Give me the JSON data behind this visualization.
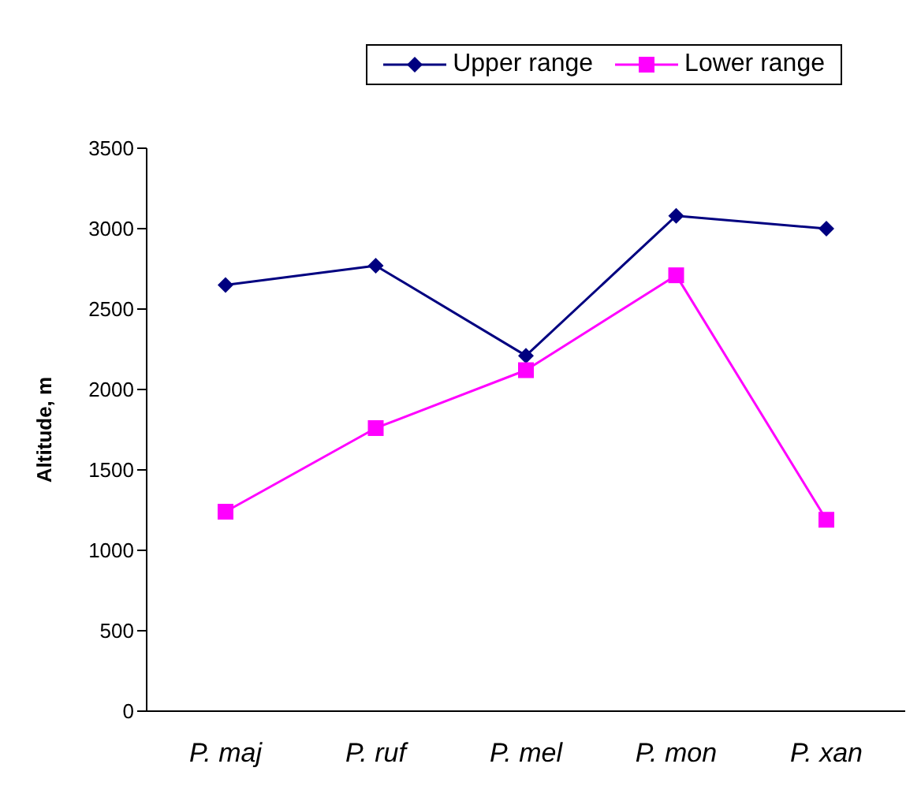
{
  "chart_data": {
    "type": "line",
    "ylabel": "Altitude, m",
    "categories": [
      "P. maj",
      "P. ruf",
      "P. mel",
      "P. mon",
      "P. xan"
    ],
    "series": [
      {
        "name": "Upper range",
        "color": "#000080",
        "marker": "diamond",
        "values": [
          2650,
          2770,
          2210,
          3080,
          3000
        ]
      },
      {
        "name": "Lower range",
        "color": "#ff00ff",
        "marker": "square",
        "values": [
          1240,
          1760,
          2120,
          2710,
          1190
        ]
      }
    ],
    "ylim": [
      0,
      3500
    ],
    "yticks": [
      0,
      500,
      1000,
      1500,
      2000,
      2500,
      3000,
      3500
    ],
    "grid": false,
    "legend": "top right",
    "line_style": "solid"
  }
}
